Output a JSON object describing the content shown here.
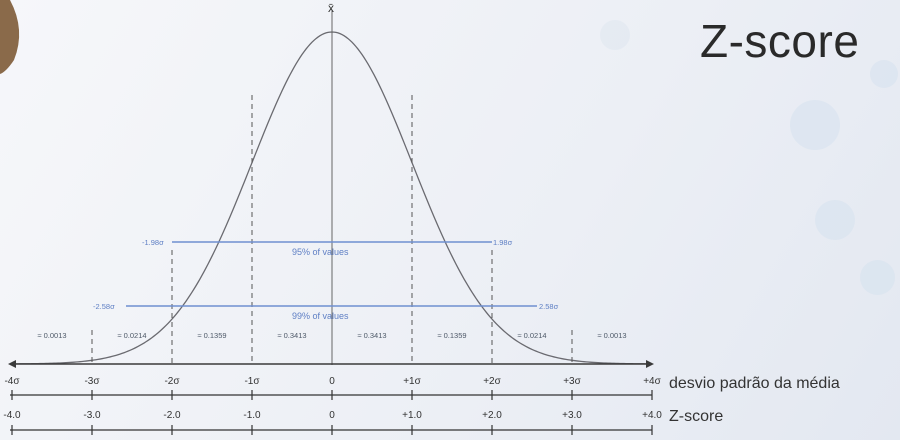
{
  "title": "Z-score",
  "mean_symbol": "x̄",
  "bands": {
    "b95": {
      "left": "-1.98σ",
      "right": "1.98σ",
      "label": "95% of values"
    },
    "b99": {
      "left": "-2.58σ",
      "right": "2.58σ",
      "label": "99% of values"
    }
  },
  "probabilities": [
    "≈ 0.0013",
    "≈ 0.0214",
    "≈ 0.1359",
    "≈ 0.3413",
    "≈ 0.3413",
    "≈ 0.1359",
    "≈ 0.0214",
    "≈ 0.0013"
  ],
  "sigma_ticks": [
    "-4σ",
    "-3σ",
    "-2σ",
    "-1σ",
    "0",
    "+1σ",
    "+2σ",
    "+3σ",
    "+4σ"
  ],
  "sigma_caption": "desvio padrão da média",
  "z_ticks": [
    "-4.0",
    "-3.0",
    "-2.0",
    "-1.0",
    "0",
    "+1.0",
    "+2.0",
    "+3.0",
    "+4.0"
  ],
  "z_caption": "Z-score",
  "colors": {
    "band": "#6f8fd0",
    "curve": "#6a6a70"
  }
}
